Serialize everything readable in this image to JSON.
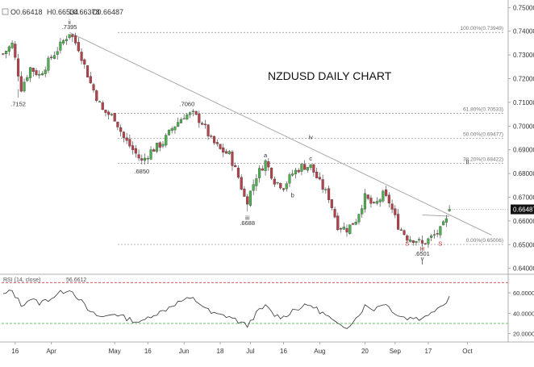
{
  "header": {
    "open": "O0.66418",
    "high": "H0.66534",
    "low": "L0.66378",
    "close": "C0.66487"
  },
  "colors": {
    "up": "#4caf50",
    "down": "#b5424a",
    "text": "#333333",
    "red_text": "#d03030",
    "trendline": "#aaaaaa",
    "fib": "#888888",
    "rsi_line": "#333333",
    "rsi_upper": "#d04040",
    "rsi_lower": "#30b030",
    "price_box": "#111111"
  },
  "chart_data": {
    "type": "candlestick",
    "title": "NZDUSD DAILY CHART",
    "price_axis": {
      "min": 0.6375,
      "max": 0.7525,
      "ticks": [
        "0.75000",
        "0.74000",
        "0.73000",
        "0.72000",
        "0.71000",
        "0.70000",
        "0.69000",
        "0.68000",
        "0.67000",
        "0.66000",
        "0.65000",
        "0.64000"
      ],
      "tick_values": [
        0.75,
        0.74,
        0.73,
        0.72,
        0.71,
        0.7,
        0.69,
        0.68,
        0.67,
        0.66,
        0.65,
        0.64
      ]
    },
    "time_axis": {
      "labels": [
        {
          "label": "16",
          "bar": 4
        },
        {
          "label": "Apr",
          "bar": 16
        },
        {
          "label": "May",
          "bar": 37
        },
        {
          "label": "16",
          "bar": 48
        },
        {
          "label": "Jun",
          "bar": 60
        },
        {
          "label": "18",
          "bar": 72
        },
        {
          "label": "Jul",
          "bar": 82
        },
        {
          "label": "16",
          "bar": 93
        },
        {
          "label": "Aug",
          "bar": 105
        },
        {
          "label": "20",
          "bar": 120
        },
        {
          "label": "Sep",
          "bar": 130
        },
        {
          "label": "17",
          "bar": 141
        },
        {
          "label": "Oct",
          "bar": 154
        }
      ],
      "total_bars": 168
    },
    "current_price": "0.66487",
    "current_value": 0.66487,
    "anchors": [
      [
        0,
        0.7305
      ],
      [
        3,
        0.7345
      ],
      [
        6,
        0.716
      ],
      [
        9,
        0.7245
      ],
      [
        12,
        0.7215
      ],
      [
        16,
        0.729
      ],
      [
        19,
        0.734
      ],
      [
        22,
        0.7395
      ],
      [
        25,
        0.733
      ],
      [
        29,
        0.718
      ],
      [
        33,
        0.7065
      ],
      [
        37,
        0.7035
      ],
      [
        40,
        0.695
      ],
      [
        43,
        0.69
      ],
      [
        46,
        0.685
      ],
      [
        49,
        0.6895
      ],
      [
        53,
        0.693
      ],
      [
        56,
        0.699
      ],
      [
        60,
        0.7045
      ],
      [
        63,
        0.705
      ],
      [
        66,
        0.7015
      ],
      [
        69,
        0.694
      ],
      [
        72,
        0.69
      ],
      [
        75,
        0.688
      ],
      [
        78,
        0.6785
      ],
      [
        80,
        0.67
      ],
      [
        81,
        0.6688
      ],
      [
        84,
        0.679
      ],
      [
        87,
        0.685
      ],
      [
        90,
        0.677
      ],
      [
        93,
        0.6745
      ],
      [
        96,
        0.68
      ],
      [
        99,
        0.683
      ],
      [
        102,
        0.683
      ],
      [
        105,
        0.676
      ],
      [
        108,
        0.67
      ],
      [
        111,
        0.658
      ],
      [
        114,
        0.6565
      ],
      [
        117,
        0.6605
      ],
      [
        120,
        0.67
      ],
      [
        123,
        0.666
      ],
      [
        126,
        0.671
      ],
      [
        128,
        0.668
      ],
      [
        131,
        0.658
      ],
      [
        134,
        0.653
      ],
      [
        137,
        0.652
      ],
      [
        139,
        0.6501
      ],
      [
        142,
        0.653
      ],
      [
        145,
        0.656
      ],
      [
        147,
        0.66
      ],
      [
        148,
        0.6649
      ]
    ],
    "annotations": [
      {
        "text": ".7152",
        "bar": 5,
        "price": 0.7085,
        "color": "text"
      },
      {
        "text": "ii",
        "bar": 22,
        "price": 0.743,
        "color": "text"
      },
      {
        "text": ".7395",
        "bar": 22,
        "price": 0.741,
        "color": "text"
      },
      {
        "text": ".7060",
        "bar": 61,
        "price": 0.7085,
        "color": "text"
      },
      {
        "text": ".6850",
        "bar": 46,
        "price": 0.68,
        "color": "text"
      },
      {
        "text": "iii",
        "bar": 81,
        "price": 0.6605,
        "color": "text"
      },
      {
        "text": ".6688",
        "bar": 81,
        "price": 0.6583,
        "color": "text"
      },
      {
        "text": "a",
        "bar": 87,
        "price": 0.6868,
        "color": "text"
      },
      {
        "text": "b",
        "bar": 96,
        "price": 0.67,
        "color": "text"
      },
      {
        "text": "c",
        "bar": 102,
        "price": 0.6855,
        "color": "text"
      },
      {
        "text": "iv",
        "bar": 102,
        "price": 0.6945,
        "color": "text"
      },
      {
        "text": "II",
        "bar": 154,
        "price": 0.684,
        "color": "text"
      },
      {
        "text": "S",
        "bar": 134,
        "price": 0.6495,
        "color": "red_text"
      },
      {
        "text": "S",
        "bar": 145,
        "price": 0.6495,
        "color": "red_text"
      },
      {
        "text": "H",
        "bar": 139,
        "price": 0.6473,
        "color": "red_text"
      },
      {
        "text": ".6501",
        "bar": 139,
        "price": 0.6453,
        "color": "text"
      },
      {
        "text": "v",
        "bar": 139,
        "price": 0.6433,
        "color": "text"
      },
      {
        "text": "I",
        "bar": 139,
        "price": 0.6415,
        "color": "text"
      }
    ],
    "fib_levels": [
      {
        "label": "100.00%(0.73949)",
        "value": 0.73949
      },
      {
        "label": "61.80%(0.70533)",
        "value": 0.70533
      },
      {
        "label": "50.00%(0.69477)",
        "value": 0.69477
      },
      {
        "label": "38.20%(0.68422)",
        "value": 0.68422
      },
      {
        "label": "0.00%(0.65006)",
        "value": 0.65006
      }
    ],
    "trendline": {
      "from_bar": 22,
      "from_price": 0.7395,
      "to_bar": 162,
      "to_price": 0.654
    },
    "neckline": {
      "from_bar": 139,
      "from_price": 0.6625,
      "to_bar": 148,
      "to_price": 0.662
    },
    "rsi": {
      "label": "RSI (14, close)",
      "value_label": "56.6612",
      "axis_ticks": [
        "60.0000",
        "40.0000",
        "20.0000"
      ],
      "axis_values": [
        60,
        40,
        20
      ],
      "min": 15,
      "max": 75,
      "upper": 70,
      "lower": 30,
      "values": [
        [
          0,
          58
        ],
        [
          3,
          62
        ],
        [
          6,
          48
        ],
        [
          9,
          54
        ],
        [
          12,
          50
        ],
        [
          16,
          55
        ],
        [
          19,
          60
        ],
        [
          22,
          64
        ],
        [
          25,
          55
        ],
        [
          29,
          40
        ],
        [
          33,
          36
        ],
        [
          37,
          40
        ],
        [
          40,
          36
        ],
        [
          43,
          33
        ],
        [
          46,
          31
        ],
        [
          49,
          38
        ],
        [
          53,
          42
        ],
        [
          56,
          48
        ],
        [
          60,
          53
        ],
        [
          63,
          54
        ],
        [
          66,
          48
        ],
        [
          69,
          40
        ],
        [
          72,
          38
        ],
        [
          75,
          37
        ],
        [
          78,
          32
        ],
        [
          80,
          29
        ],
        [
          81,
          28
        ],
        [
          84,
          40
        ],
        [
          87,
          47
        ],
        [
          90,
          38
        ],
        [
          93,
          36
        ],
        [
          96,
          43
        ],
        [
          99,
          46
        ],
        [
          102,
          48
        ],
        [
          105,
          42
        ],
        [
          108,
          36
        ],
        [
          111,
          28
        ],
        [
          114,
          27
        ],
        [
          117,
          35
        ],
        [
          120,
          47
        ],
        [
          123,
          44
        ],
        [
          126,
          50
        ],
        [
          128,
          46
        ],
        [
          131,
          38
        ],
        [
          134,
          35
        ],
        [
          137,
          36
        ],
        [
          139,
          34
        ],
        [
          142,
          42
        ],
        [
          145,
          47
        ],
        [
          147,
          52
        ],
        [
          148,
          56.66
        ]
      ]
    }
  }
}
